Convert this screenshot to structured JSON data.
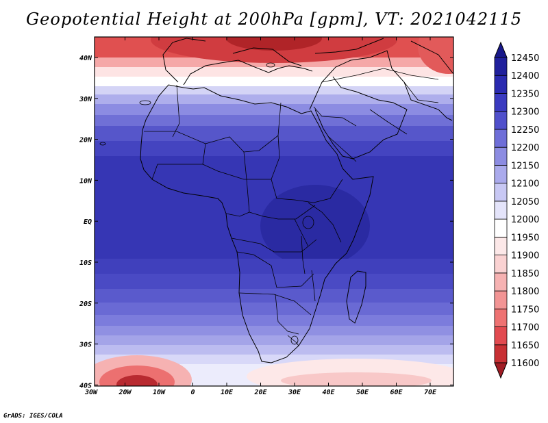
{
  "title": "Geopotential Height at 200hPa [gpm], VT: 2021042115",
  "credit": "GrADS: IGES/COLA",
  "map": {
    "lon_labels": [
      "30W",
      "20W",
      "10W",
      "0",
      "10E",
      "20E",
      "30E",
      "40E",
      "50E",
      "60E",
      "70E"
    ],
    "lat_labels": [
      "40N",
      "30N",
      "20N",
      "10N",
      "EQ",
      "10S",
      "20S",
      "30S",
      "40S"
    ]
  },
  "colorbar": {
    "levels": [
      "11600",
      "11650",
      "11700",
      "11750",
      "11800",
      "11850",
      "11900",
      "11950",
      "12000",
      "12050",
      "12100",
      "12150",
      "12200",
      "12250",
      "12300",
      "12350",
      "12400",
      "12450"
    ],
    "colors": [
      "#a01c24",
      "#c83034",
      "#e24a50",
      "#ee7272",
      "#f29494",
      "#f6b2b2",
      "#fad2d2",
      "#fce8e8",
      "#ffffff",
      "#e4e4fa",
      "#c8c8f4",
      "#aaaaec",
      "#8c8ce2",
      "#6e6ed8",
      "#5050cc",
      "#3a3ac0",
      "#2a2ab0",
      "#20209c",
      "#18188a"
    ]
  }
}
